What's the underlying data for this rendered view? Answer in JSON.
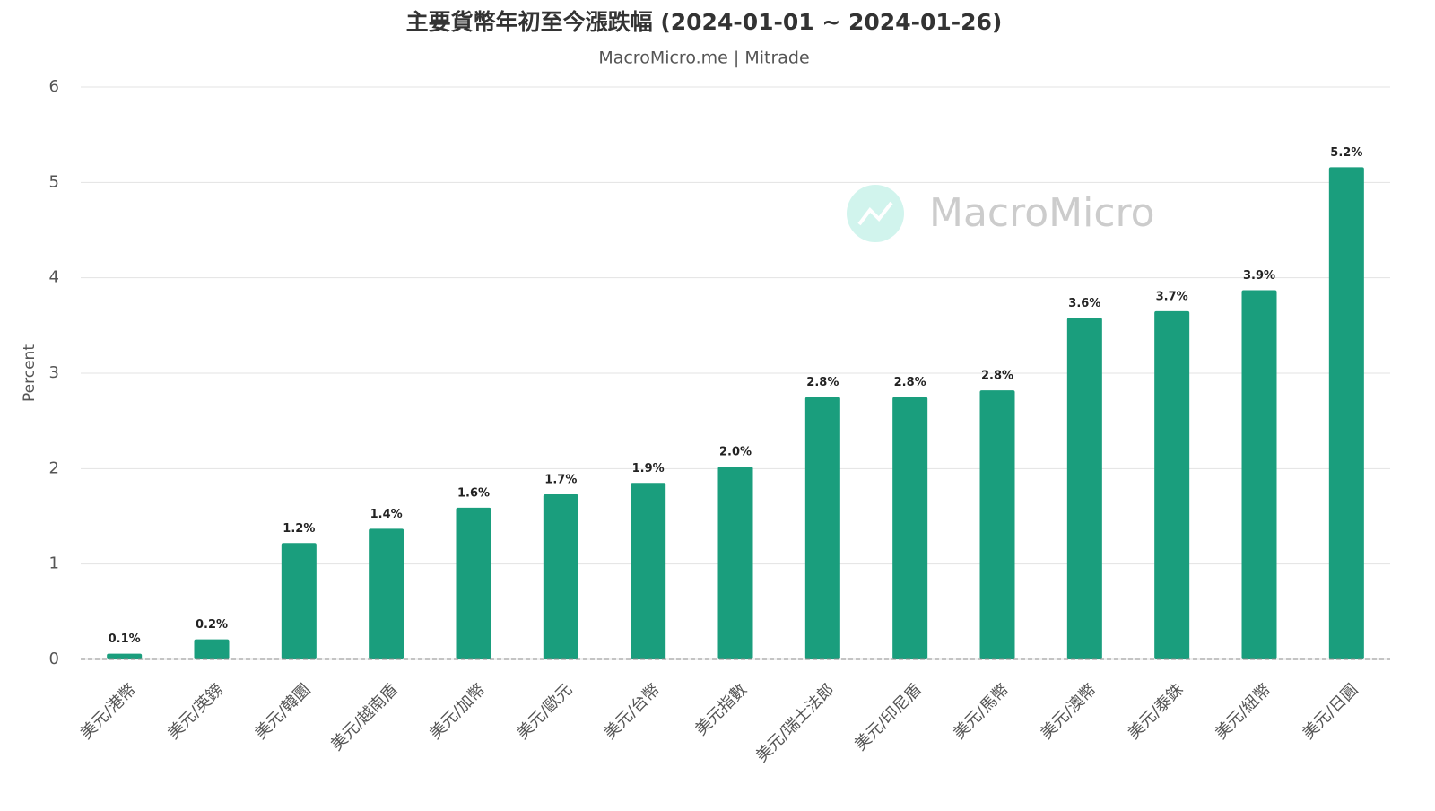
{
  "chart_data": {
    "type": "bar",
    "title": "主要貨幣年初至今漲跌幅 (2024-01-01 ~ 2024-01-26)",
    "subtitle": "MacroMicro.me | Mitrade",
    "watermark": "MacroMicro",
    "y_label": "Percent",
    "categories": [
      "美元/港幣",
      "美元/英鎊",
      "美元/韓圜",
      "美元/越南盾",
      "美元/加幣",
      "美元/歐元",
      "美元/台幣",
      "美元指數",
      "美元/瑞士法郎",
      "美元/印尼盾",
      "美元/馬幣",
      "美元/澳幣",
      "美元/泰銖",
      "美元/紐幣",
      "美元/日圓"
    ],
    "values": [
      0.06,
      0.21,
      1.22,
      1.37,
      1.59,
      1.73,
      1.85,
      2.02,
      2.75,
      2.75,
      2.82,
      3.58,
      3.65,
      3.87,
      5.16
    ],
    "value_labels": [
      "0.1%",
      "0.2%",
      "1.2%",
      "1.4%",
      "1.6%",
      "1.7%",
      "1.9%",
      "2.0%",
      "2.8%",
      "2.8%",
      "2.8%",
      "3.6%",
      "3.7%",
      "3.9%",
      "5.2%"
    ],
    "color": "#1a9e7d",
    "ylim": [
      0,
      6
    ],
    "yticks": [
      0,
      1,
      2,
      3,
      4,
      5,
      6
    ],
    "grid": true
  }
}
